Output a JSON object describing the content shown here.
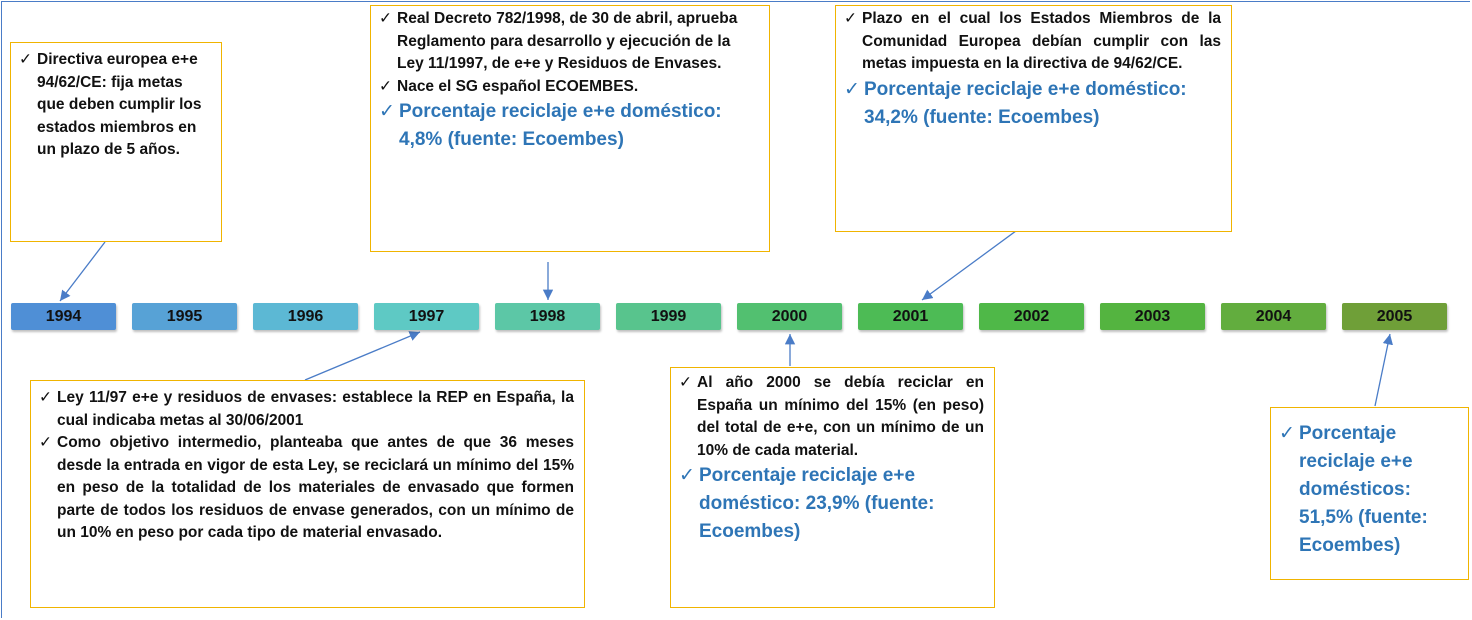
{
  "timeline": {
    "years": [
      "1994",
      "1995",
      "1996",
      "1997",
      "1998",
      "1999",
      "2000",
      "2001",
      "2002",
      "2003",
      "2004",
      "2005"
    ]
  },
  "callouts": [
    {
      "items": [
        "Directiva europea e+e 94/62/CE: fija metas que deben cumplir los estados miembros en un plazo de 5 años."
      ]
    },
    {
      "items": [
        "Real Decreto 782/1998, de 30 de abril, aprueba Reglamento para desarrollo y ejecución de la Ley 11/1997, de e+e y Residuos de Envases.",
        "Nace el SG español ECOEMBES."
      ],
      "highlight": "Porcentaje reciclaje e+e doméstico: 4,8% (fuente: Ecoembes)"
    },
    {
      "items": [
        "Plazo en el cual los Estados Miembros de la Comunidad Europea debían cumplir con las metas impuesta en la directiva de 94/62/CE."
      ],
      "highlight": "Porcentaje reciclaje e+e doméstico: 34,2% (fuente: Ecoembes)"
    },
    {
      "items": [
        "Ley 11/97 e+e y residuos de envases: establece la REP en España, la cual indicaba metas al 30/06/2001",
        "Como objetivo intermedio, planteaba que antes de que 36 meses desde la entrada en vigor de esta Ley, se reciclará un mínimo del 15% en peso de la totalidad de los materiales de envasado que formen parte de todos los residuos de envase generados, con un mínimo de un 10% en peso por cada tipo de material envasado."
      ]
    },
    {
      "items": [
        "Al año 2000 se debía reciclar en España un mínimo del 15% (en peso) del total de e+e, con un mínimo de un 10% de cada material."
      ],
      "highlight": "Porcentaje reciclaje e+e doméstico: 23,9% (fuente: Ecoembes)"
    },
    {
      "highlight": "Porcentaje reciclaje e+e domésticos: 51,5% (fuente: Ecoembes)"
    }
  ]
}
